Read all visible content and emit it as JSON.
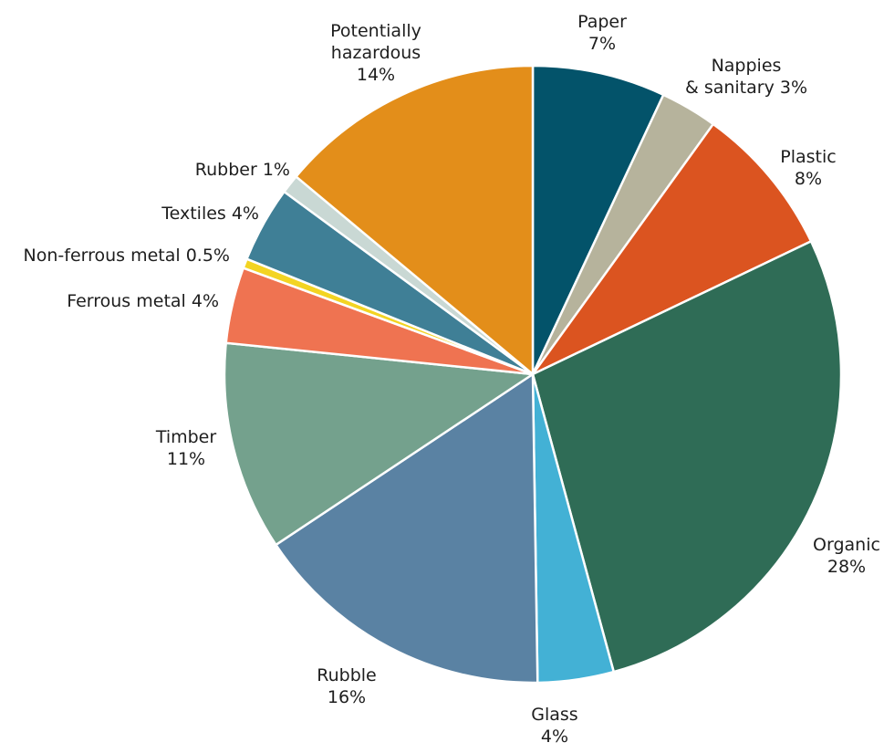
{
  "chart_data": {
    "type": "pie",
    "title": "",
    "start_angle_deg": 0,
    "direction": "clockwise",
    "slices": [
      {
        "label": "Paper",
        "value_text": "7%",
        "value": 7,
        "color": "#03536a"
      },
      {
        "label": "Nappies & sanitary",
        "value_text": "3%",
        "value": 3,
        "color": "#b6b39c"
      },
      {
        "label": "Plastic",
        "value_text": "8%",
        "value": 8,
        "color": "#db5420"
      },
      {
        "label": "Organic",
        "value_text": "28%",
        "value": 28,
        "color": "#2f6c56"
      },
      {
        "label": "Glass",
        "value_text": "4%",
        "value": 4,
        "color": "#43b1d5"
      },
      {
        "label": "Rubble",
        "value_text": "16%",
        "value": 16,
        "color": "#5a82a3"
      },
      {
        "label": "Timber",
        "value_text": "11%",
        "value": 11,
        "color": "#74a18d"
      },
      {
        "label": "Ferrous metal",
        "value_text": "4%",
        "value": 4,
        "color": "#ef7351"
      },
      {
        "label": "Non-ferrous metal",
        "value_text": "0.5%",
        "value": 0.5,
        "color": "#f3d422"
      },
      {
        "label": "Textiles",
        "value_text": "4%",
        "value": 4,
        "color": "#3f7f96"
      },
      {
        "label": "Rubber",
        "value_text": "1%",
        "value": 1,
        "color": "#c9d8d4"
      },
      {
        "label": "Potentially hazardous",
        "value_text": "14%",
        "value": 14,
        "color": "#e38e1a"
      }
    ]
  }
}
